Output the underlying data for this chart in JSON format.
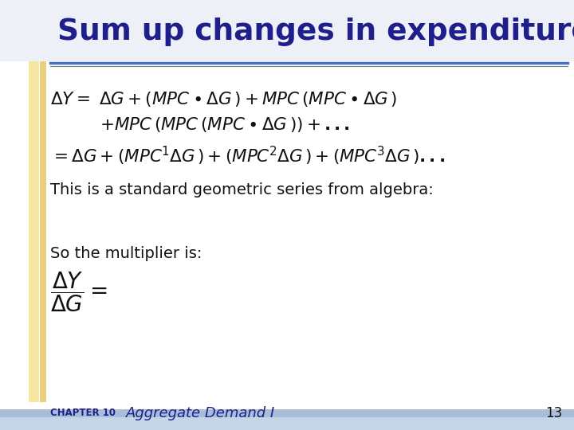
{
  "title": "Sum up changes in expenditure",
  "title_color": "#1F1F8B",
  "bg_color": "#FFFFFF",
  "left_bar_color1": "#F5E6A3",
  "left_bar_color2": "#E8D080",
  "bottom_bar_color1": "#A8BED8",
  "bottom_bar_color2": "#C5D5E8",
  "slide_number": "13",
  "chapter_text": "CHAPTER 10",
  "subtitle_text": "Aggregate Demand I",
  "line4": "This is a standard geometric series from algebra:",
  "line5": "So the multiplier is:",
  "text_color": "#111111",
  "header_line_color1": "#4472C4",
  "header_line_color2": "#7F7F7F",
  "title_bg_color": "#EEF0F8",
  "footer_color": "#1F1F8B"
}
